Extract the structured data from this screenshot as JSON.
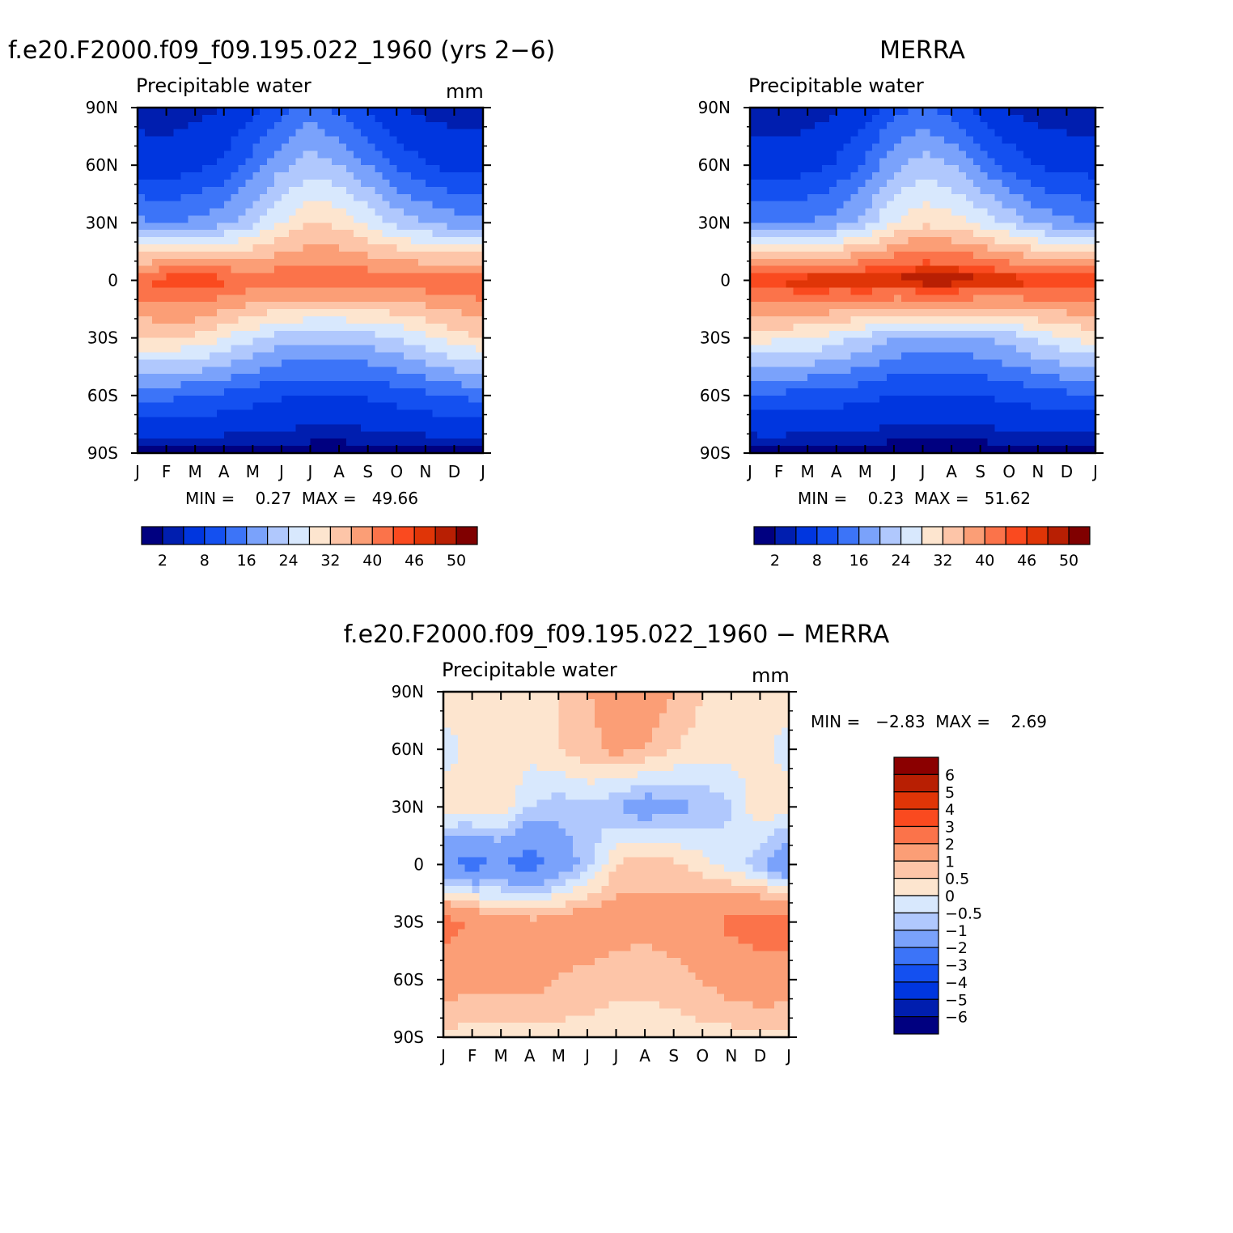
{
  "palette": {
    "sequential": [
      "#000080",
      "#001eaf",
      "#0036df",
      "#1450f0",
      "#3c74f8",
      "#7aa2fb",
      "#b0c8fd",
      "#d8e8fd",
      "#fde5cf",
      "#fdc5a8",
      "#fb9e76",
      "#fb734a",
      "#fa4a1f",
      "#e03507",
      "#b81f03",
      "#800000"
    ],
    "difference": [
      "#000080",
      "#001eaf",
      "#0036df",
      "#1450f0",
      "#3c74f8",
      "#7aa2fb",
      "#b0c8fd",
      "#d8e8fd",
      "#fde5cf",
      "#fdc5a8",
      "#fb9e76",
      "#fb734a",
      "#fa4a1f",
      "#e03507",
      "#b81f03",
      "#8b0000"
    ]
  },
  "axes": {
    "month_ticks": [
      "J",
      "F",
      "M",
      "A",
      "M",
      "J",
      "J",
      "A",
      "S",
      "O",
      "N",
      "D",
      "J"
    ],
    "lat_ticks": [
      "90N",
      "60N",
      "30N",
      "0",
      "30S",
      "60S",
      "90S"
    ]
  },
  "panels": [
    {
      "id": "model",
      "title": "f.e20.F2000.f09_f09.195.022_1960 (yrs 2−6)",
      "subtitle": "Precipitable water",
      "units": "mm",
      "stats": "MIN =    0.27  MAX =   49.66",
      "colorbar_labels": [
        "2",
        "8",
        "16",
        "24",
        "32",
        "40",
        "46",
        "50"
      ]
    },
    {
      "id": "obs",
      "title": "MERRA",
      "subtitle": "Precipitable water",
      "units": "",
      "stats": "MIN =    0.23  MAX =   51.62",
      "colorbar_labels": [
        "2",
        "8",
        "16",
        "24",
        "32",
        "40",
        "46",
        "50"
      ]
    },
    {
      "id": "diff",
      "title": "f.e20.F2000.f09_f09.195.022_1960 − MERRA",
      "subtitle": "Precipitable water",
      "units": "mm",
      "stats": "MIN =   −2.83  MAX =    2.69",
      "colorbar_labels": [
        "6",
        "5",
        "4",
        "3",
        "2",
        "1",
        "0.5",
        "0",
        "−0.5",
        "−1",
        "−2",
        "−3",
        "−4",
        "−5",
        "−6"
      ]
    }
  ],
  "chart_data": [
    {
      "type": "heatmap",
      "title": "f.e20.F2000.f09_f09.195.022_1960 (yrs 2−6)",
      "subtitle": "Precipitable water",
      "units": "mm",
      "x": [
        "J",
        "F",
        "M",
        "A",
        "M",
        "J",
        "J",
        "A",
        "S",
        "O",
        "N",
        "D",
        "J"
      ],
      "y": [
        90,
        60,
        30,
        0,
        -30,
        -60,
        -90
      ],
      "ylabels": [
        "90N",
        "60N",
        "30N",
        "0",
        "30S",
        "60S",
        "90S"
      ],
      "values": [
        [
          2.5,
          2.5,
          3,
          4,
          6,
          11,
          14,
          11,
          7,
          4,
          3,
          2.5,
          2.5
        ],
        [
          6,
          5.5,
          7,
          9,
          14,
          19,
          22,
          20,
          16,
          11,
          8,
          6.5,
          6
        ],
        [
          17,
          16,
          17,
          19,
          23,
          28,
          32,
          31,
          27,
          23,
          20,
          18,
          17
        ],
        [
          44,
          46,
          47,
          45,
          43,
          43,
          43,
          43,
          43,
          43,
          43,
          43,
          44
        ],
        [
          32,
          32,
          31,
          28,
          25,
          22,
          21,
          21,
          22,
          24,
          27,
          30,
          32
        ],
        [
          13,
          13,
          12,
          11,
          9.5,
          8.5,
          8,
          8,
          8.5,
          9.5,
          11,
          12.5,
          13
        ],
        [
          1,
          1.2,
          1,
          0.9,
          0.8,
          0.7,
          0.6,
          0.6,
          0.6,
          0.7,
          0.9,
          1,
          1
        ]
      ],
      "levels": [
        2,
        4,
        8,
        12,
        16,
        20,
        24,
        28,
        32,
        36,
        40,
        44,
        46,
        48,
        50
      ],
      "colorbar_labels": [
        "2",
        "8",
        "16",
        "24",
        "32",
        "40",
        "46",
        "50"
      ],
      "min": 0.27,
      "max": 49.66
    },
    {
      "type": "heatmap",
      "title": "MERRA",
      "subtitle": "Precipitable water",
      "x": [
        "J",
        "F",
        "M",
        "A",
        "M",
        "J",
        "J",
        "A",
        "S",
        "O",
        "N",
        "D",
        "J"
      ],
      "y": [
        90,
        60,
        30,
        0,
        -30,
        -60,
        -90
      ],
      "ylabels": [
        "90N",
        "60N",
        "30N",
        "0",
        "30S",
        "60S",
        "90S"
      ],
      "values": [
        [
          2,
          2,
          2.5,
          3.5,
          5.5,
          10,
          13,
          10,
          6.5,
          3.5,
          2.5,
          2,
          2
        ],
        [
          6,
          5.5,
          6.5,
          8.5,
          13,
          19,
          22,
          20,
          15,
          10.5,
          7.5,
          6.5,
          6
        ],
        [
          16,
          15,
          16,
          18,
          22,
          28,
          31,
          30,
          27,
          23,
          19,
          17,
          16
        ],
        [
          46,
          47,
          48,
          48,
          49,
          49,
          50,
          50,
          49,
          48,
          47,
          46,
          46
        ],
        [
          30,
          29,
          28,
          26,
          23,
          20,
          19,
          19,
          20,
          22,
          25,
          28,
          30
        ],
        [
          11,
          11,
          10.5,
          10,
          9,
          8,
          7.5,
          7.5,
          8,
          9,
          10,
          11,
          11
        ],
        [
          0.8,
          0.9,
          0.8,
          0.7,
          0.6,
          0.5,
          0.5,
          0.5,
          0.5,
          0.6,
          0.7,
          0.8,
          0.8
        ]
      ],
      "levels": [
        2,
        4,
        8,
        12,
        16,
        20,
        24,
        28,
        32,
        36,
        40,
        44,
        46,
        48,
        50
      ],
      "colorbar_labels": [
        "2",
        "8",
        "16",
        "24",
        "32",
        "40",
        "46",
        "50"
      ],
      "min": 0.23,
      "max": 51.62
    },
    {
      "type": "heatmap",
      "title": "f.e20.F2000.f09_f09.195.022_1960 − MERRA",
      "subtitle": "Precipitable water",
      "units": "mm",
      "x": [
        "J",
        "F",
        "M",
        "A",
        "M",
        "J",
        "J",
        "A",
        "S",
        "O",
        "N",
        "D",
        "J"
      ],
      "y": [
        90,
        60,
        30,
        0,
        -30,
        -60,
        -90
      ],
      "ylabels": [
        "90N",
        "60N",
        "30N",
        "0",
        "30S",
        "60S",
        "90S"
      ],
      "values": [
        [
          0.3,
          0.3,
          0.3,
          0.3,
          0.5,
          1,
          1.2,
          1.5,
          1,
          0.5,
          0.3,
          0.3,
          0.3
        ],
        [
          -0.2,
          0.1,
          0.3,
          0.2,
          0.5,
          0.8,
          1.2,
          1,
          0.5,
          0.3,
          0.2,
          0.1,
          -0.2
        ],
        [
          0.2,
          0.3,
          0.4,
          -0.5,
          -0.8,
          -0.6,
          -1,
          -1.5,
          -1.2,
          -1,
          -0.5,
          0.4,
          0.2
        ],
        [
          -2,
          -2.3,
          -2,
          -2.5,
          -1.5,
          -0.8,
          0.5,
          0.8,
          0.6,
          0.2,
          -0.3,
          -0.8,
          -2
        ],
        [
          2.5,
          1.8,
          1.5,
          1.2,
          1.3,
          1.6,
          1.4,
          1.2,
          1.5,
          1.8,
          2.2,
          2.4,
          2.5
        ],
        [
          1.5,
          1.2,
          1.2,
          1.3,
          1,
          0.8,
          0.6,
          0.6,
          0.7,
          1,
          1.4,
          1.6,
          1.5
        ],
        [
          0.3,
          0.3,
          0.3,
          0.3,
          0.3,
          0.3,
          0.3,
          0.3,
          0.3,
          0.3,
          0.3,
          0.3,
          0.3
        ]
      ],
      "levels": [
        -6,
        -5,
        -4,
        -3,
        -2,
        -1,
        -0.5,
        0,
        0.5,
        1,
        2,
        3,
        4,
        5,
        6
      ],
      "colorbar_labels": [
        "6",
        "5",
        "4",
        "3",
        "2",
        "1",
        "0.5",
        "0",
        "−0.5",
        "−1",
        "−2",
        "−3",
        "−4",
        "−5",
        "−6"
      ],
      "min": -2.83,
      "max": 2.69
    }
  ]
}
